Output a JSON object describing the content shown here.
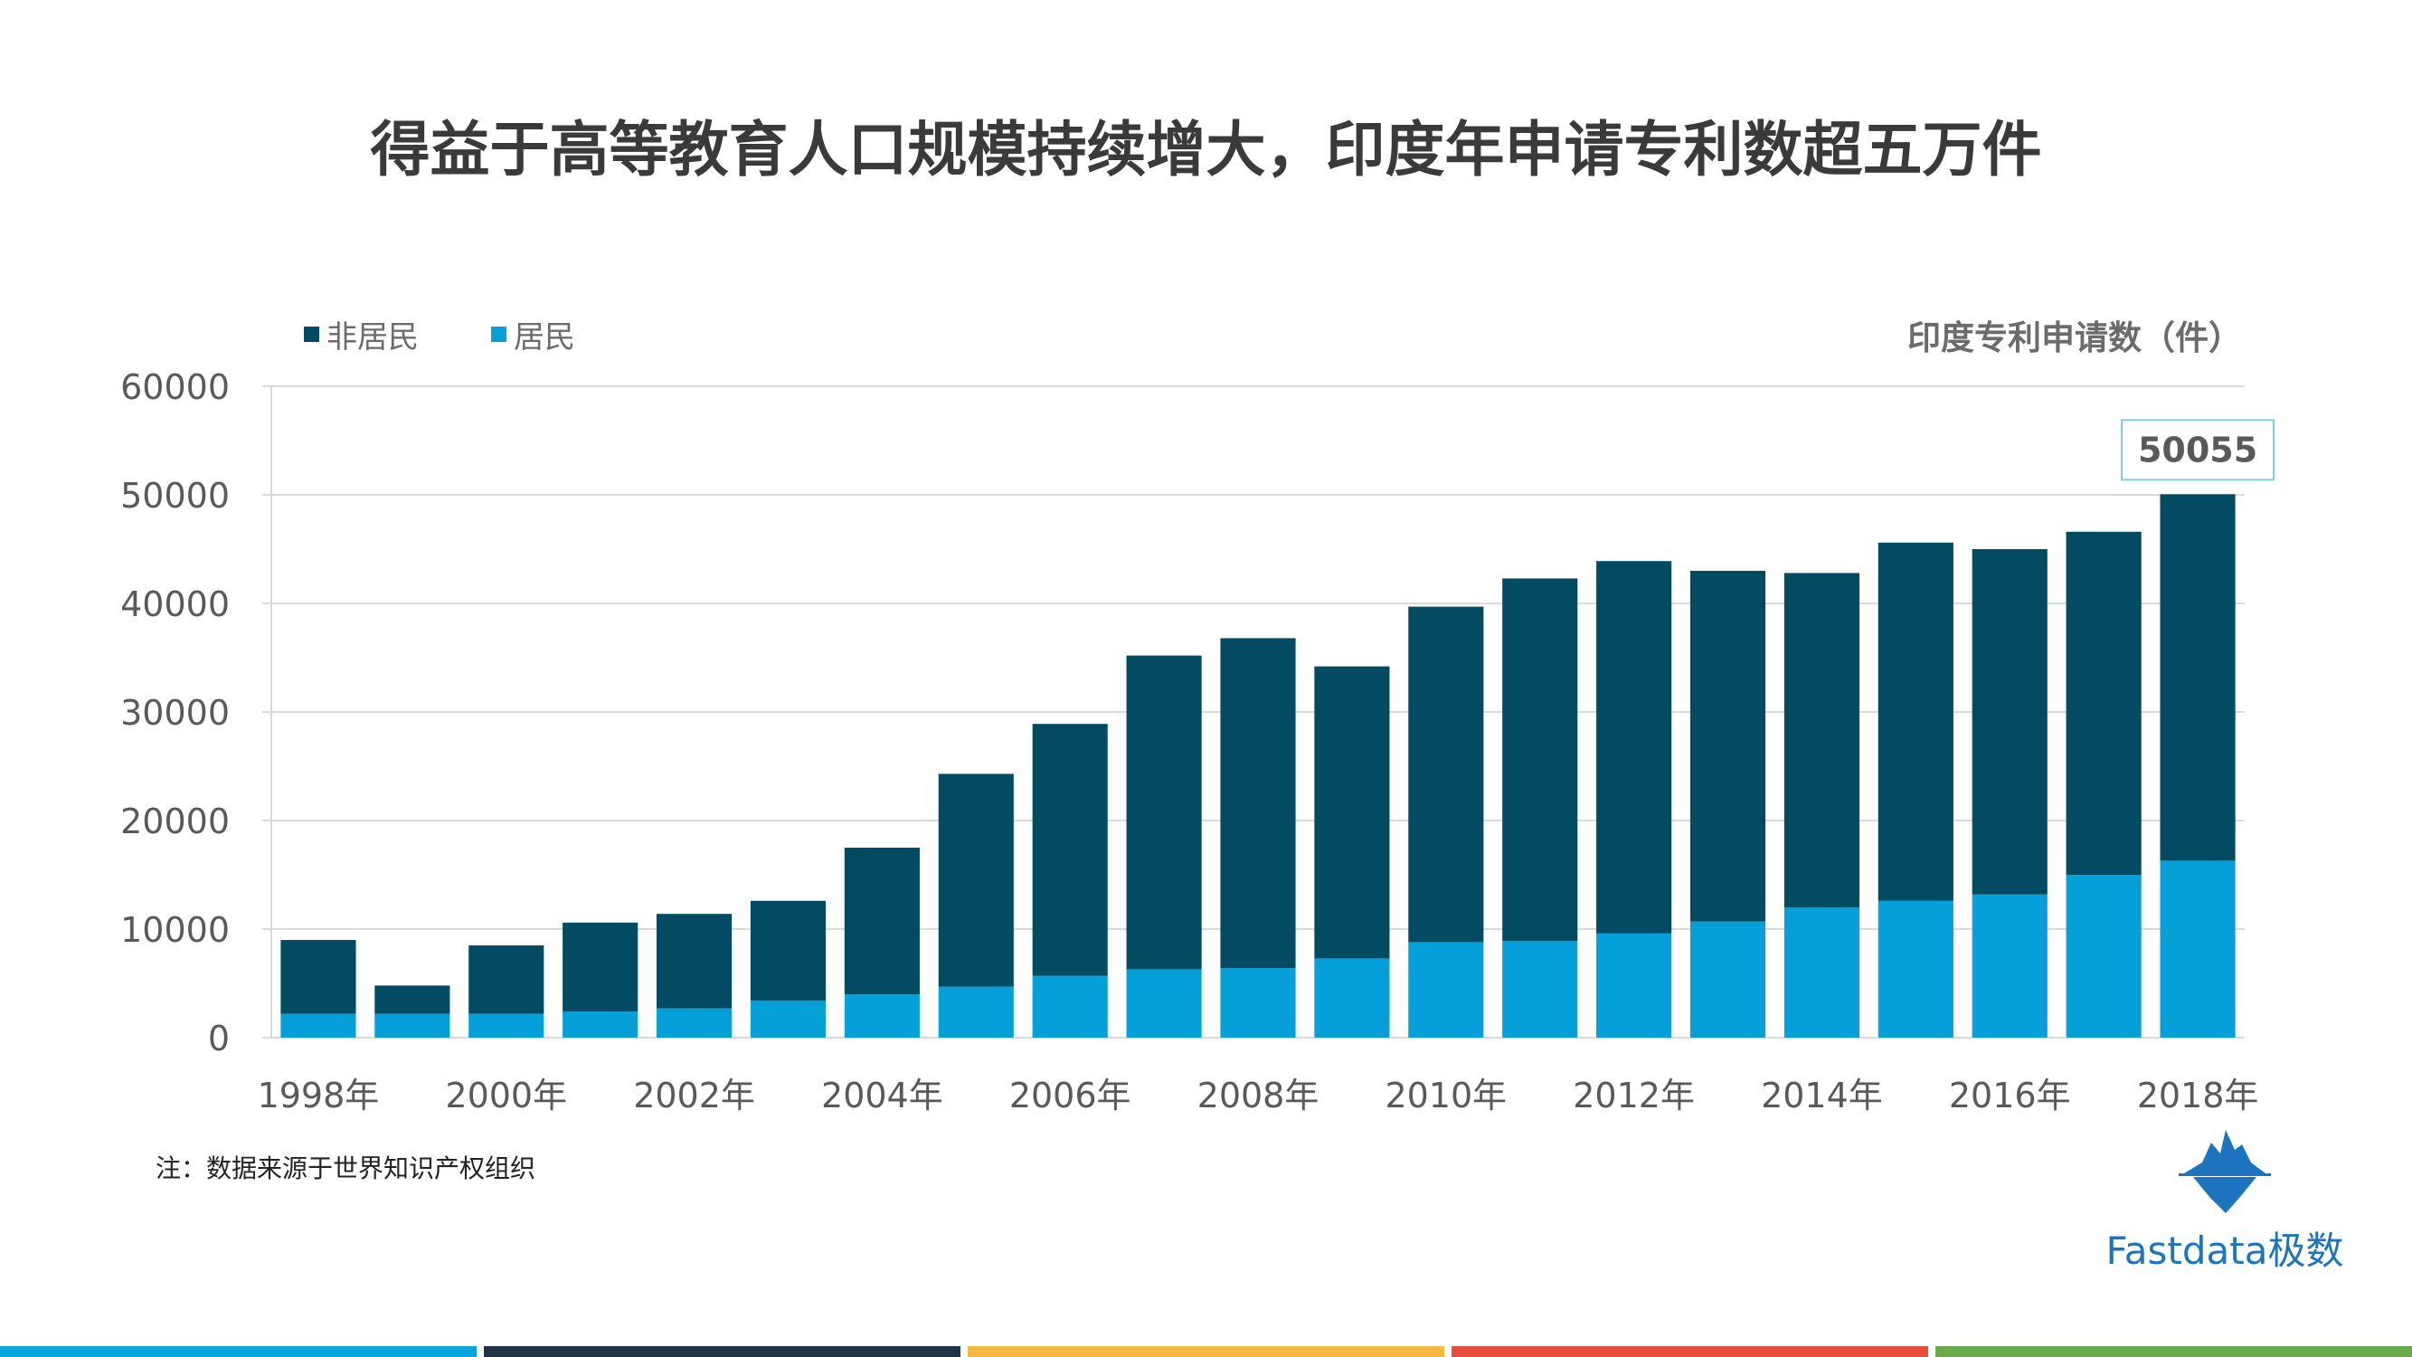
{
  "title": "得益于高等教育人口规模持续增大，印度年申请专利数超五万件",
  "note": "注：数据来源于世界知识产权组织",
  "logo_text": "Fastdata极数",
  "bottom_bar_colors": [
    "#0aa4dc",
    "#1f3344",
    "#f5b942",
    "#e74c3c",
    "#6aaa4a"
  ],
  "chart_data": {
    "type": "bar",
    "stacked": true,
    "title": "印度专利申请数（件）",
    "categories": [
      "1998年",
      "1999年",
      "2000年",
      "2001年",
      "2002年",
      "2003年",
      "2004年",
      "2005年",
      "2006年",
      "2007年",
      "2008年",
      "2009年",
      "2010年",
      "2011年",
      "2012年",
      "2013年",
      "2014年",
      "2015年",
      "2016年",
      "2017年",
      "2018年"
    ],
    "tick_labels": [
      "1998年",
      "2000年",
      "2002年",
      "2004年",
      "2006年",
      "2008年",
      "2010年",
      "2012年",
      "2014年",
      "2016年",
      "2018年"
    ],
    "y_ticks": [
      "0",
      "10000",
      "20000",
      "30000",
      "40000",
      "50000",
      "60000"
    ],
    "ylim": [
      0,
      60000
    ],
    "grid": true,
    "series": [
      {
        "name": "居民",
        "color": "#059fd9",
        "values": [
          2200,
          2200,
          2200,
          2400,
          2700,
          3400,
          4000,
          4700,
          5700,
          6300,
          6400,
          7300,
          8800,
          8900,
          9600,
          10700,
          12000,
          12600,
          13200,
          15000,
          16300
        ]
      },
      {
        "name": "非居民",
        "color": "#034b62",
        "values": [
          6800,
          2600,
          6300,
          8200,
          8700,
          9200,
          13500,
          19600,
          23200,
          28900,
          30400,
          26900,
          30900,
          33400,
          34300,
          32300,
          30800,
          33000,
          31800,
          31600,
          33755
        ]
      }
    ],
    "legend": [
      "非居民",
      "居民"
    ],
    "annotation": {
      "category": "2018年",
      "label": "50055"
    }
  }
}
